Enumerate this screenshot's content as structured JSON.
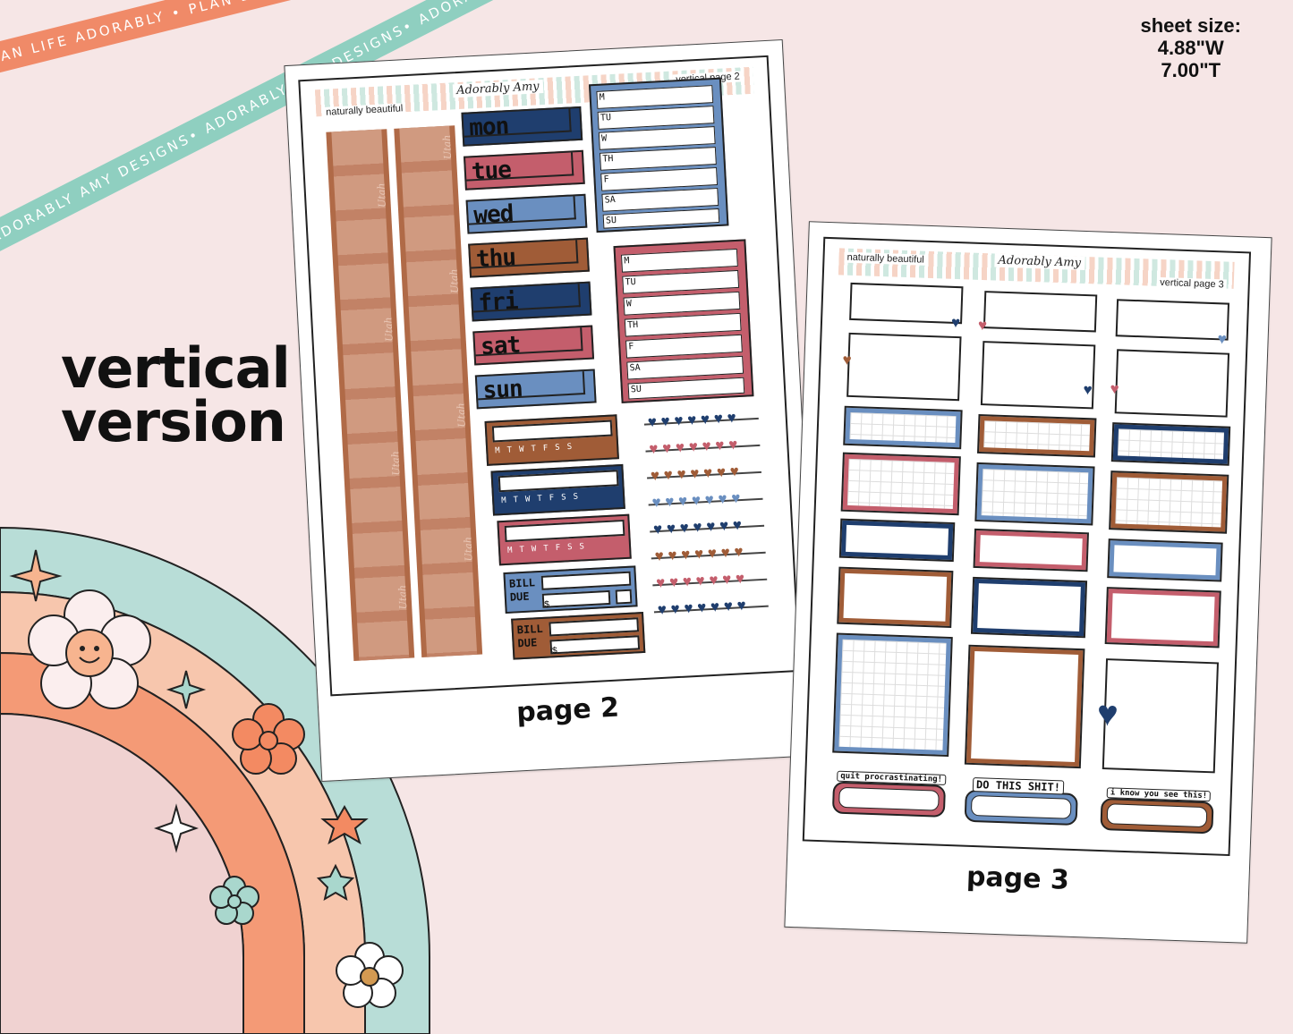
{
  "ribbons": {
    "orange": "PLAN LIFE ADORABLY • PLAN LIFE ADORABLY • PLAN LIFE ADORABLY •",
    "mint": "ADORABLY AMY DESIGNS• ADORABLY AMY DESIGNS• ADORABLY AMY DESIGNS•"
  },
  "sheet_size": {
    "label": "sheet size:",
    "width": "4.88\"W",
    "height": "7.00\"T"
  },
  "headline": {
    "line1": "vertical",
    "line2": "version"
  },
  "page2": {
    "caption": "page 2",
    "kit_name": "naturally beautiful",
    "brand": "Adorably Amy",
    "page_title": "vertical page 2",
    "strip_word": "Utah",
    "day_headers": [
      "mon",
      "tue",
      "wed",
      "thu",
      "fri",
      "sat",
      "sun"
    ],
    "week_labels": [
      "M",
      "TU",
      "W",
      "TH",
      "F",
      "SA",
      "SU"
    ],
    "tracker_days": [
      "M",
      "T",
      "W",
      "T",
      "F",
      "S",
      "S"
    ],
    "bill_label": "BILL DUE",
    "dollar": "$"
  },
  "page3": {
    "caption": "page 3",
    "kit_name": "naturally beautiful",
    "brand": "Adorably Amy",
    "page_title": "vertical page 3",
    "quotes": [
      "quit procrastinating!",
      "DO THIS SHIT!",
      "i know you see this!"
    ]
  },
  "colors": {
    "background": "#f6e6e6",
    "navy": "#1f3e6e",
    "rose": "#c45e6c",
    "blue": "#6a8fc0",
    "brown": "#a05c37",
    "utah_brown": "#b06a47",
    "ribbon_orange": "#f08a68",
    "ribbon_mint": "#8fcfc0",
    "rainbow_mint": "#b8ddd7",
    "rainbow_peach": "#f7c6ad",
    "rainbow_orange": "#f49a76",
    "rainbow_pink": "#f0d2d1"
  },
  "icons": [
    "heart-icon",
    "flower-icon",
    "smiley-flower-icon",
    "sparkle-icon",
    "star-icon"
  ]
}
